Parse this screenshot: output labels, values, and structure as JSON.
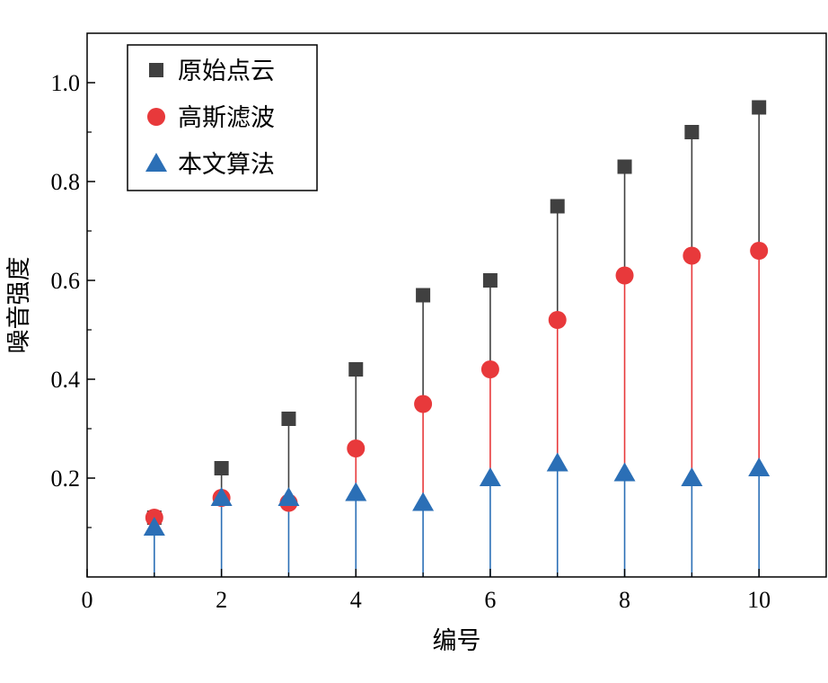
{
  "chart_data": {
    "type": "scatter",
    "title": "",
    "xlabel": "编号",
    "ylabel": "噪音强度",
    "xlim": [
      0,
      11
    ],
    "ylim": [
      0,
      1.1
    ],
    "x_ticks": [
      0,
      2,
      4,
      6,
      8,
      10
    ],
    "x_tick_labels": [
      "0",
      "2",
      "4",
      "6",
      "8",
      "10"
    ],
    "y_ticks": [
      0.2,
      0.4,
      0.6,
      0.8,
      1.0
    ],
    "y_tick_labels": [
      "0.2",
      "0.4",
      "0.6",
      "0.8",
      "1.0"
    ],
    "grid": false,
    "legend_position": "top-left",
    "x": [
      1,
      2,
      3,
      4,
      5,
      6,
      7,
      8,
      9,
      10
    ],
    "series": [
      {
        "name": "原始点云",
        "marker": "square",
        "color": "#404040",
        "values": [
          0.12,
          0.22,
          0.32,
          0.42,
          0.57,
          0.6,
          0.75,
          0.83,
          0.9,
          0.95
        ]
      },
      {
        "name": "高斯滤波",
        "marker": "circle",
        "color": "#e8393b",
        "values": [
          0.12,
          0.16,
          0.15,
          0.26,
          0.35,
          0.42,
          0.52,
          0.61,
          0.65,
          0.66
        ]
      },
      {
        "name": "本文算法",
        "marker": "triangle",
        "color": "#2b6fb6",
        "values": [
          0.1,
          0.16,
          0.16,
          0.17,
          0.15,
          0.2,
          0.23,
          0.21,
          0.2,
          0.22
        ]
      }
    ]
  }
}
